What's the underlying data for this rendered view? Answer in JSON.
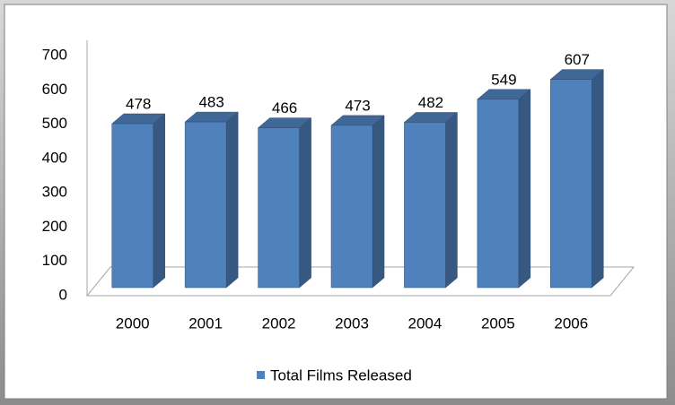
{
  "chart_data": {
    "type": "bar3d",
    "categories": [
      "2000",
      "2001",
      "2002",
      "2003",
      "2004",
      "2005",
      "2006"
    ],
    "series": [
      {
        "name": "Total Films Released",
        "color": "#4f81bd",
        "values": [
          478,
          483,
          466,
          473,
          482,
          549,
          607
        ]
      }
    ],
    "ylim": [
      0,
      700
    ],
    "yticks": [
      0,
      100,
      200,
      300,
      400,
      500,
      600,
      700
    ],
    "legend": "bottom"
  }
}
